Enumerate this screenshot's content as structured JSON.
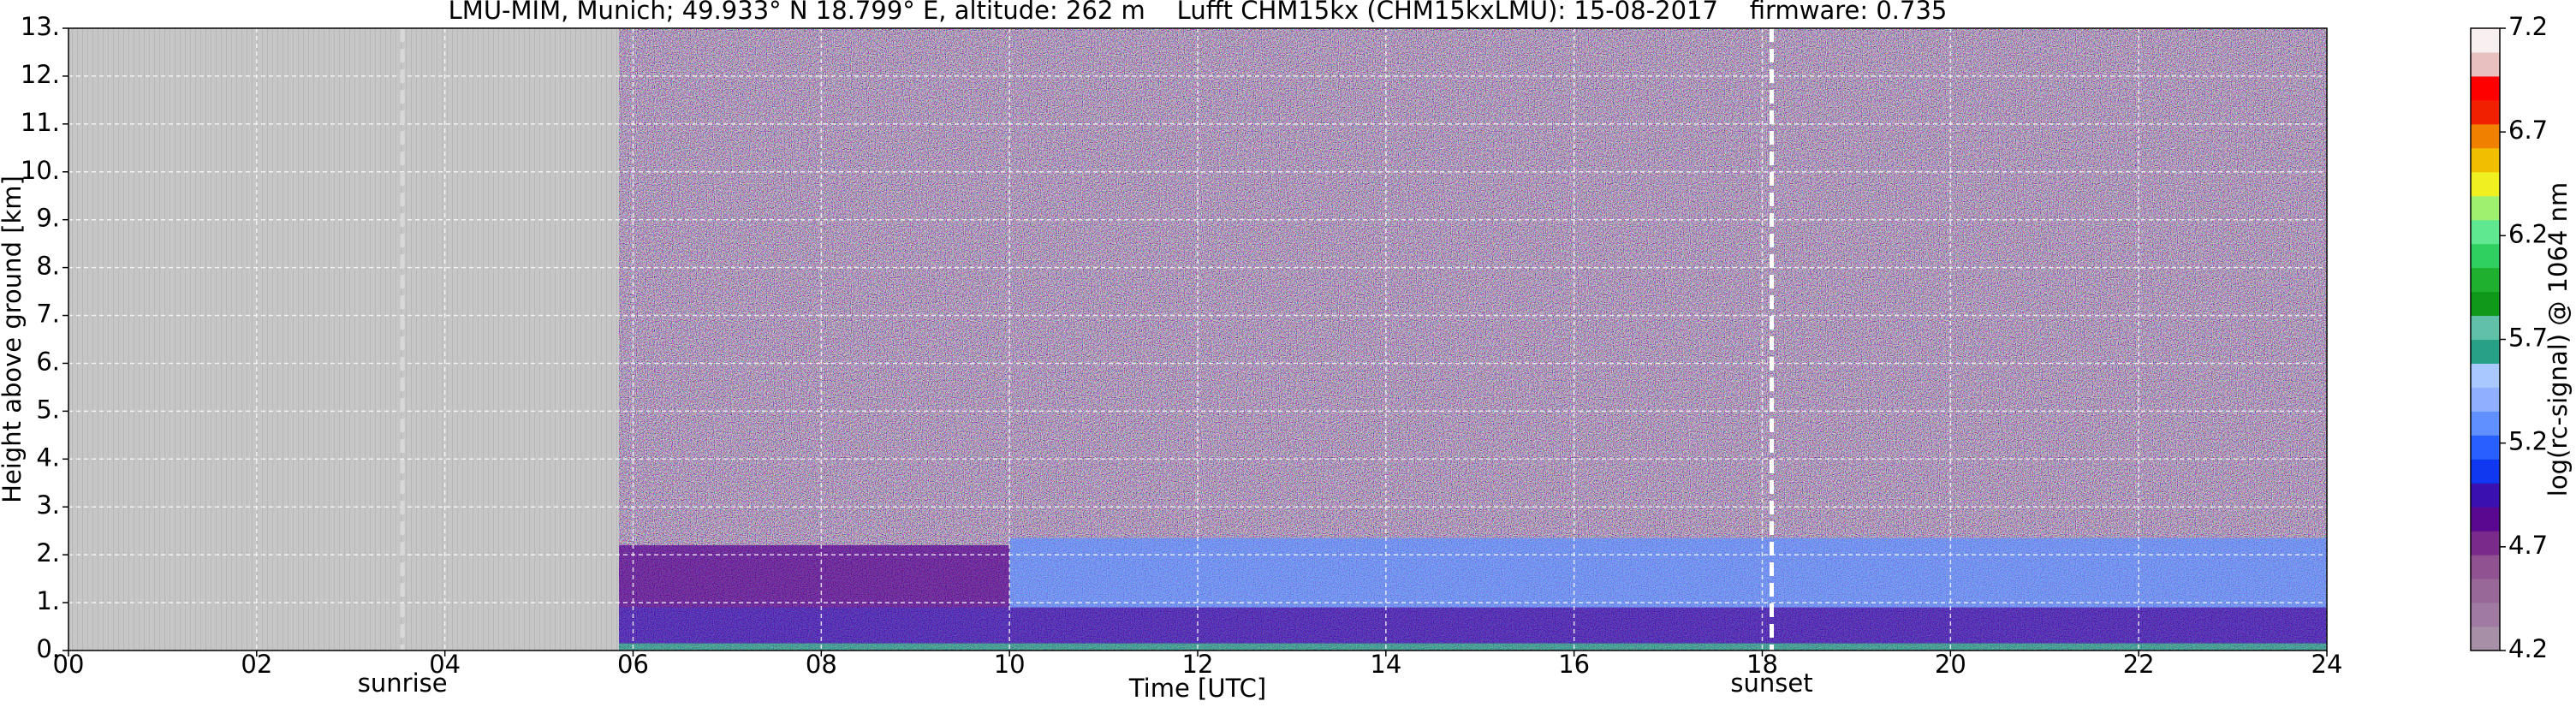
{
  "chart_data": {
    "type": "heatmap",
    "title": "LMU-MIM, Munich; 49.933° N 18.799° E, altitude: 262 m    Lufft CHM15kx (CHM15kxLMU): 15-08-2017    firmware: 0.735",
    "x_label": "Time [UTC]",
    "y_label": "Height above ground [km]",
    "xlim": [
      0,
      24
    ],
    "ylim": [
      0,
      13
    ],
    "xticks": [
      {
        "value": 0,
        "label": "00"
      },
      {
        "value": 2,
        "label": "02"
      },
      {
        "value": 4,
        "label": "04"
      },
      {
        "value": 6,
        "label": "06"
      },
      {
        "value": 8,
        "label": "08"
      },
      10,
      12,
      14,
      16,
      18,
      20,
      22,
      24
    ],
    "yticks": [
      {
        "value": 0,
        "label": "0."
      },
      {
        "value": 1,
        "label": "1."
      },
      {
        "value": 2,
        "label": "2."
      },
      {
        "value": 3,
        "label": "3."
      },
      {
        "value": 4,
        "label": "4."
      },
      {
        "value": 5,
        "label": "5."
      },
      {
        "value": 6,
        "label": "6."
      },
      {
        "value": 7,
        "label": "7."
      },
      {
        "value": 8,
        "label": "8."
      },
      {
        "value": 9,
        "label": "9."
      },
      {
        "value": 10,
        "label": "10."
      },
      {
        "value": 11,
        "label": "11."
      },
      {
        "value": 12,
        "label": "12."
      },
      {
        "value": 13,
        "label": "13."
      }
    ],
    "grid": true,
    "no_data": {
      "x": [
        0,
        5.85
      ],
      "color": "#c6c6c6"
    },
    "layers": [
      {
        "x": [
          5.85,
          24
        ],
        "y": [
          2.2,
          13
        ],
        "value": 4.3
      },
      {
        "x": [
          5.85,
          10
        ],
        "y": [
          0.3,
          2.2
        ],
        "value": 4.85
      },
      {
        "x": [
          10,
          24
        ],
        "y": [
          0.3,
          2.35
        ],
        "value": 5.3
      },
      {
        "x": [
          5.85,
          24
        ],
        "y": [
          0.15,
          0.9
        ],
        "value": 5.0
      },
      {
        "x": [
          5.85,
          24
        ],
        "y": [
          0,
          0.15
        ],
        "value": 5.6
      }
    ],
    "markers": [
      {
        "x": 3.55,
        "label": "sunrise",
        "color": "#d8d8d8"
      },
      {
        "x": 18.1,
        "label": "sunset",
        "color": "#ffffff"
      }
    ],
    "colorbar": {
      "label": "log(rc-signal) @ 1064 nm",
      "clim": [
        4.2,
        7.2
      ],
      "ticks": [
        4.2,
        4.7,
        5.2,
        5.7,
        6.2,
        6.7,
        7.2
      ],
      "colors": [
        "#a88fa8",
        "#a07aa0",
        "#986898",
        "#905290",
        "#7a2a8a",
        "#5a0890",
        "#3a10b0",
        "#1038f0",
        "#2860ff",
        "#6090ff",
        "#90b0ff",
        "#a8c8ff",
        "#28a088",
        "#60c0a8",
        "#109818",
        "#20b030",
        "#30d060",
        "#60e890",
        "#a0f070",
        "#f0f020",
        "#f0c000",
        "#f08000",
        "#f02000",
        "#ff0000",
        "#e8c0c0",
        "#f8f0f0"
      ]
    }
  }
}
